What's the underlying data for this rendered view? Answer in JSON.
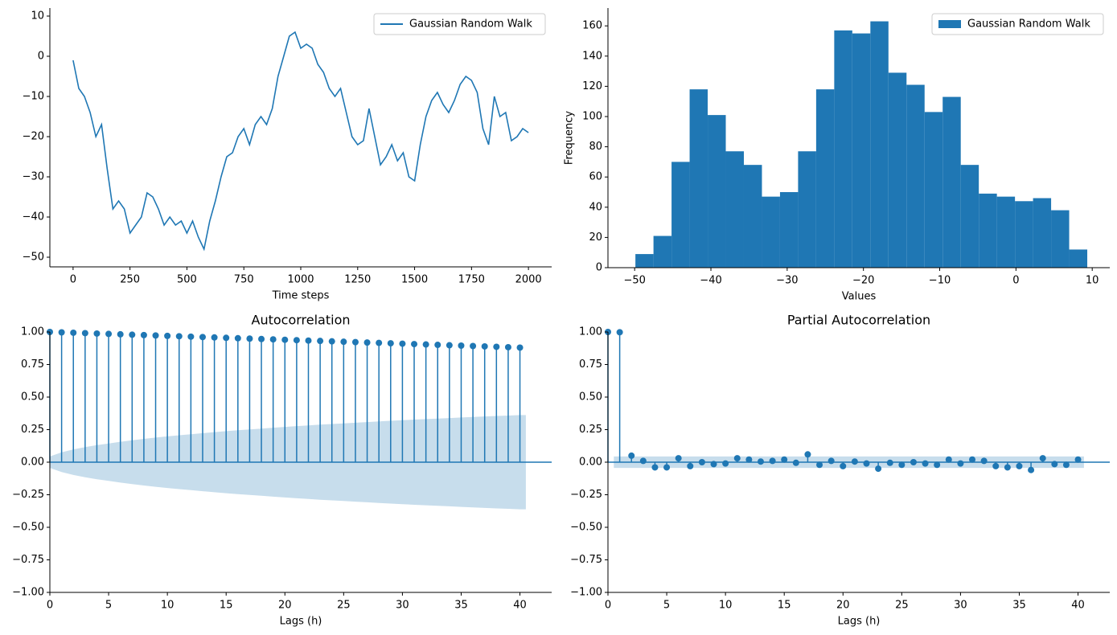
{
  "chart_data": [
    {
      "type": "line",
      "xlabel": "Time steps",
      "legend": "upper right",
      "x": [
        0,
        25,
        50,
        75,
        100,
        125,
        150,
        175,
        200,
        225,
        250,
        275,
        300,
        325,
        350,
        375,
        400,
        425,
        450,
        475,
        500,
        525,
        550,
        575,
        600,
        625,
        650,
        675,
        700,
        725,
        750,
        775,
        800,
        825,
        850,
        875,
        900,
        925,
        950,
        975,
        1000,
        1025,
        1050,
        1075,
        1100,
        1125,
        1150,
        1175,
        1200,
        1225,
        1250,
        1275,
        1300,
        1325,
        1350,
        1375,
        1400,
        1425,
        1450,
        1475,
        1500,
        1525,
        1550,
        1575,
        1600,
        1625,
        1650,
        1675,
        1700,
        1725,
        1750,
        1775,
        1800,
        1825,
        1850,
        1875,
        1900,
        1925,
        1950,
        1975,
        2000
      ],
      "series": [
        {
          "name": "Gaussian Random Walk",
          "color": "#1f77b4",
          "values": [
            -1,
            -8,
            -10,
            -14,
            -20,
            -17,
            -28,
            -38,
            -36,
            -38,
            -44,
            -42,
            -40,
            -34,
            -35,
            -38,
            -42,
            -40,
            -42,
            -41,
            -44,
            -41,
            -45,
            -48,
            -41,
            -36,
            -30,
            -25,
            -24,
            -20,
            -18,
            -22,
            -17,
            -15,
            -17,
            -13,
            -5,
            0,
            5,
            6,
            2,
            3,
            2,
            -2,
            -4,
            -8,
            -10,
            -8,
            -14,
            -20,
            -22,
            -21,
            -13,
            -20,
            -27,
            -25,
            -22,
            -26,
            -24,
            -30,
            -31,
            -22,
            -15,
            -11,
            -9,
            -12,
            -14,
            -11,
            -7,
            -5,
            -6,
            -9,
            -18,
            -22,
            -10,
            -15,
            -14,
            -21,
            -20,
            -18,
            -19
          ]
        }
      ],
      "xlim": [
        -102,
        2102
      ],
      "xticks": [
        0,
        250,
        500,
        750,
        1000,
        1250,
        1500,
        1750,
        2000
      ],
      "ylim": [
        -52.4,
        12
      ],
      "yticks": [
        {
          "value": -50,
          "label": "−50"
        },
        {
          "value": -40,
          "label": "−40"
        },
        {
          "value": -30,
          "label": "−30"
        },
        {
          "value": -20,
          "label": "−20"
        },
        {
          "value": -10,
          "label": "−10"
        },
        0,
        10
      ]
    },
    {
      "type": "histogram",
      "xlabel": "Values",
      "ylabel": "Frequency",
      "legend": "upper right",
      "bins": [
        -49.9,
        -47.53,
        -45.16,
        -42.79,
        -40.42,
        -38.05,
        -35.68,
        -33.31,
        -30.94,
        -28.57,
        -26.2,
        -23.83,
        -21.46,
        -19.09,
        -16.72,
        -14.35,
        -11.98,
        -9.61,
        -7.24,
        -4.87,
        -2.5,
        -0.13,
        2.24,
        4.61,
        6.98,
        9.35
      ],
      "series": [
        {
          "name": "Gaussian Random Walk",
          "color": "#1f77b4",
          "values": [
            9,
            21,
            70,
            118,
            101,
            77,
            68,
            47,
            50,
            77,
            118,
            157,
            155,
            163,
            129,
            121,
            103,
            113,
            68,
            49,
            47,
            44,
            46,
            38,
            12
          ]
        }
      ],
      "xlim": [
        -53.5,
        12.3
      ],
      "xticks": [
        {
          "value": -50,
          "label": "−50"
        },
        {
          "value": -40,
          "label": "−40"
        },
        {
          "value": -30,
          "label": "−30"
        },
        {
          "value": -20,
          "label": "−20"
        },
        {
          "value": -10,
          "label": "−10"
        },
        0,
        10
      ],
      "ylim": [
        0,
        171.8
      ],
      "yticks": [
        0,
        20,
        40,
        60,
        80,
        100,
        120,
        140,
        160
      ]
    },
    {
      "type": "stem",
      "title": "Autocorrelation",
      "xlabel": "Lags (h)",
      "color": "#1f77b4",
      "x": [
        0,
        1,
        2,
        3,
        4,
        5,
        6,
        7,
        8,
        9,
        10,
        11,
        12,
        13,
        14,
        15,
        16,
        17,
        18,
        19,
        20,
        21,
        22,
        23,
        24,
        25,
        26,
        27,
        28,
        29,
        30,
        31,
        32,
        33,
        34,
        35,
        36,
        37,
        38,
        39,
        40
      ],
      "values": [
        1.0,
        0.997,
        0.994,
        0.991,
        0.988,
        0.985,
        0.982,
        0.979,
        0.976,
        0.973,
        0.97,
        0.967,
        0.964,
        0.961,
        0.958,
        0.955,
        0.952,
        0.949,
        0.946,
        0.943,
        0.94,
        0.937,
        0.934,
        0.931,
        0.928,
        0.925,
        0.922,
        0.919,
        0.916,
        0.913,
        0.91,
        0.907,
        0.904,
        0.901,
        0.898,
        0.895,
        0.892,
        0.889,
        0.886,
        0.883,
        0.88
      ],
      "confint": [
        0.044,
        0.076,
        0.098,
        0.116,
        0.131,
        0.144,
        0.157,
        0.168,
        0.179,
        0.189,
        0.198,
        0.207,
        0.215,
        0.223,
        0.231,
        0.238,
        0.245,
        0.252,
        0.258,
        0.265,
        0.271,
        0.277,
        0.282,
        0.288,
        0.293,
        0.298,
        0.303,
        0.308,
        0.313,
        0.318,
        0.322,
        0.327,
        0.331,
        0.335,
        0.339,
        0.343,
        0.347,
        0.351,
        0.355,
        0.358,
        0.362
      ],
      "xlim": [
        0,
        42.7
      ],
      "xticks": [
        0,
        5,
        10,
        15,
        20,
        25,
        30,
        35,
        40
      ],
      "ylim": [
        -1,
        1
      ],
      "yticks": [
        {
          "value": -1,
          "label": "−1.00"
        },
        {
          "value": -0.75,
          "label": "−0.75"
        },
        {
          "value": -0.5,
          "label": "−0.50"
        },
        {
          "value": -0.25,
          "label": "−0.25"
        },
        {
          "value": 0,
          "label": "0.00"
        },
        {
          "value": 0.25,
          "label": "0.25"
        },
        {
          "value": 0.5,
          "label": "0.50"
        },
        {
          "value": 0.75,
          "label": "0.75"
        },
        {
          "value": 1,
          "label": "1.00"
        }
      ]
    },
    {
      "type": "stem",
      "title": "Partial Autocorrelation",
      "xlabel": "Lags (h)",
      "color": "#1f77b4",
      "x": [
        0,
        1,
        2,
        3,
        4,
        5,
        6,
        7,
        8,
        9,
        10,
        11,
        12,
        13,
        14,
        15,
        16,
        17,
        18,
        19,
        20,
        21,
        22,
        23,
        24,
        25,
        26,
        27,
        28,
        29,
        30,
        31,
        32,
        33,
        34,
        35,
        36,
        37,
        38,
        39,
        40
      ],
      "values": [
        1.0,
        0.998,
        0.05,
        0.01,
        -0.04,
        -0.04,
        0.03,
        -0.03,
        0.0,
        -0.015,
        -0.01,
        0.03,
        0.02,
        0.005,
        0.01,
        0.02,
        -0.005,
        0.06,
        -0.02,
        0.01,
        -0.03,
        0.005,
        -0.01,
        -0.05,
        -0.005,
        -0.02,
        0.0,
        -0.01,
        -0.02,
        0.02,
        -0.01,
        0.02,
        0.01,
        -0.03,
        -0.04,
        -0.03,
        -0.06,
        0.03,
        -0.015,
        -0.02,
        0.02
      ],
      "confint": [
        null,
        0.044,
        0.044,
        0.044,
        0.044,
        0.044,
        0.044,
        0.044,
        0.044,
        0.044,
        0.044,
        0.044,
        0.044,
        0.044,
        0.044,
        0.044,
        0.044,
        0.044,
        0.044,
        0.044,
        0.044,
        0.044,
        0.044,
        0.044,
        0.044,
        0.044,
        0.044,
        0.044,
        0.044,
        0.044,
        0.044,
        0.044,
        0.044,
        0.044,
        0.044,
        0.044,
        0.044,
        0.044,
        0.044,
        0.044,
        0.044
      ],
      "xlim": [
        0,
        42.7
      ],
      "xticks": [
        0,
        5,
        10,
        15,
        20,
        25,
        30,
        35,
        40
      ],
      "ylim": [
        -1,
        1
      ],
      "yticks": [
        {
          "value": -1,
          "label": "−1.00"
        },
        {
          "value": -0.75,
          "label": "−0.75"
        },
        {
          "value": -0.5,
          "label": "−0.50"
        },
        {
          "value": -0.25,
          "label": "−0.25"
        },
        {
          "value": 0,
          "label": "0.00"
        },
        {
          "value": 0.25,
          "label": "0.25"
        },
        {
          "value": 0.5,
          "label": "0.50"
        },
        {
          "value": 0.75,
          "label": "0.75"
        },
        {
          "value": 1,
          "label": "1.00"
        }
      ]
    }
  ]
}
